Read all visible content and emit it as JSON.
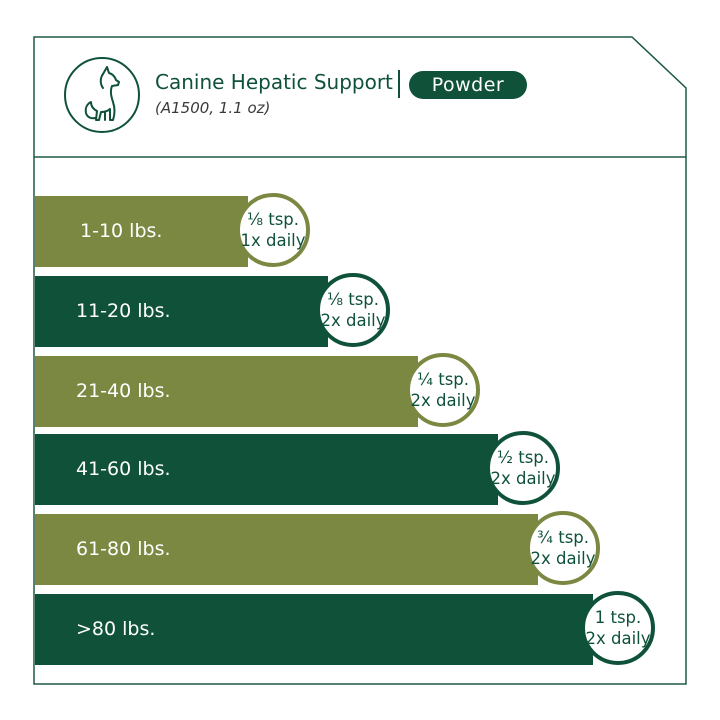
{
  "product": {
    "name": "Canine Hepatic Support",
    "form": "Powder",
    "sku_size": "(A1500, 1.1 oz)",
    "icon": "dog-icon"
  },
  "colors": {
    "dark_green": "#0f5239",
    "olive": "#7b8841",
    "frame": "#1f5a43"
  },
  "dosing": [
    {
      "weight": "1-10 lbs.",
      "amount": "⅛ tsp.",
      "frequency": "1x daily",
      "color": "olive"
    },
    {
      "weight": "11-20 lbs.",
      "amount": "⅛ tsp.",
      "frequency": "2x daily",
      "color": "green"
    },
    {
      "weight": "21-40 lbs.",
      "amount": "¼ tsp.",
      "frequency": "2x daily",
      "color": "olive"
    },
    {
      "weight": "41-60 lbs.",
      "amount": "½ tsp.",
      "frequency": "2x daily",
      "color": "green"
    },
    {
      "weight": "61-80 lbs.",
      "amount": "¾ tsp.",
      "frequency": "2x daily",
      "color": "olive"
    },
    {
      "weight": ">80 lbs.",
      "amount": "1 tsp.",
      "frequency": "2x daily",
      "color": "green"
    }
  ]
}
